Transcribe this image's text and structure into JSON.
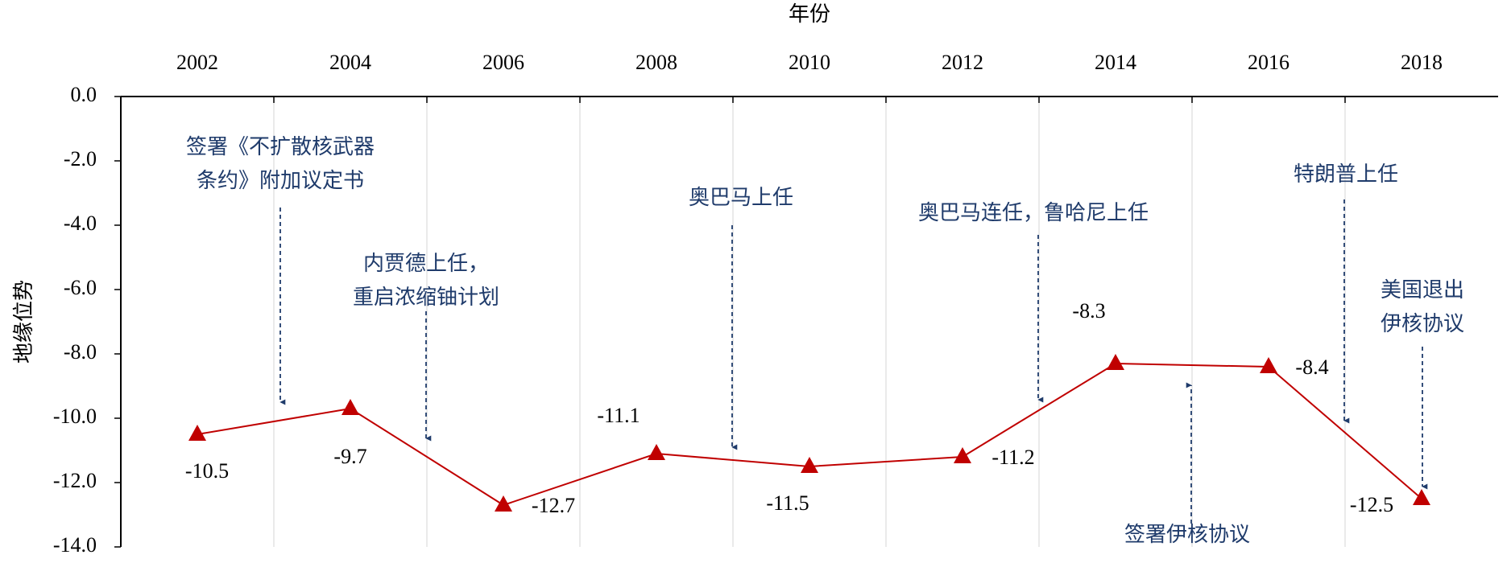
{
  "chart_data": {
    "type": "line",
    "x_label": "年份",
    "y_label": "地缘位势",
    "categories": [
      "2002",
      "2004",
      "2006",
      "2008",
      "2010",
      "2012",
      "2014",
      "2016",
      "2018"
    ],
    "series": [
      {
        "name": "地缘位势",
        "color": "#c00000",
        "values": [
          -10.5,
          -9.7,
          -12.7,
          -11.1,
          -11.5,
          -11.2,
          -8.3,
          -8.4,
          -12.5
        ]
      }
    ],
    "ylim": [
      -14,
      0
    ],
    "yticks": [
      {
        "value": 0,
        "label": "0.0"
      },
      {
        "value": -2,
        "label": "-2.0"
      },
      {
        "value": -4,
        "label": "-4.0"
      },
      {
        "value": -6,
        "label": "-6.0"
      },
      {
        "value": -8,
        "label": "-8.0"
      },
      {
        "value": -10,
        "label": "-10.0"
      },
      {
        "value": -12,
        "label": "-12.0"
      },
      {
        "value": -14,
        "label": "-14.0"
      }
    ],
    "grid": true,
    "annotations": [
      {
        "lines": [
          "签署《不扩散核武器",
          "条约》附加议定书"
        ]
      },
      {
        "lines": [
          "内贾德上任，",
          "重启浓缩铀计划"
        ]
      },
      {
        "lines": [
          "奥巴马上任"
        ]
      },
      {
        "lines": [
          "奥巴马连任，鲁哈尼上任"
        ]
      },
      {
        "lines": [
          "特朗普上任"
        ]
      },
      {
        "lines": [
          "签署伊核协议"
        ]
      },
      {
        "lines": [
          "美国退出",
          "伊核协议"
        ]
      }
    ]
  }
}
